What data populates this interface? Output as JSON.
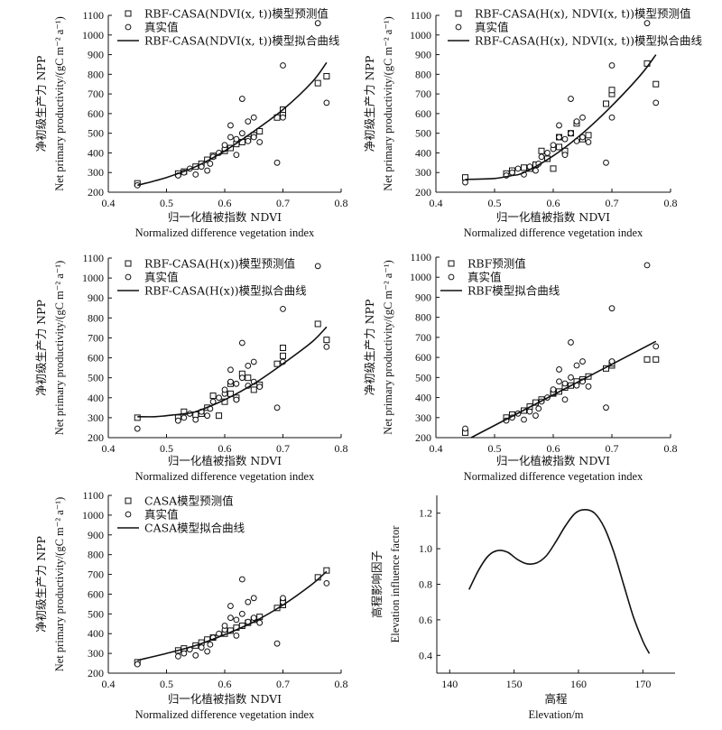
{
  "chart_data": [
    {
      "type": "scatter",
      "xlabel_cn": "归一化植被指数 NDVI",
      "xlabel_en": "Normalized difference vegetation index",
      "ylabel_cn": "净初级生产力 NPP",
      "ylabel_en": "Net primary productivity/(gC m⁻² a⁻¹)",
      "xlim": [
        0.4,
        0.8
      ],
      "ylim": [
        200,
        1100
      ],
      "xticks": [
        "0.4",
        "0.5",
        "0.6",
        "0.7",
        "0.8"
      ],
      "yticks": [
        "200",
        "300",
        "400",
        "500",
        "600",
        "700",
        "800",
        "900",
        "1000",
        "1100"
      ],
      "legend_loc": "top-left",
      "legend": [
        "RBF-CASA(NDVI(x, t))模型预测值",
        "真实值",
        "RBF-CASA(NDVI(x, t))模型拟合曲线"
      ],
      "series": [
        {
          "name": "RBF-CASA(NDVI(x, t))模型预测值",
          "marker": "square",
          "x": [
            0.45,
            0.52,
            0.53,
            0.55,
            0.56,
            0.57,
            0.58,
            0.6,
            0.61,
            0.62,
            0.63,
            0.64,
            0.65,
            0.66,
            0.69,
            0.7,
            0.7,
            0.76,
            0.775
          ],
          "y": [
            245,
            295,
            305,
            330,
            345,
            365,
            385,
            410,
            425,
            445,
            455,
            470,
            490,
            510,
            580,
            600,
            620,
            755,
            790
          ]
        },
        {
          "name": "真实值",
          "marker": "circle",
          "x": [
            0.45,
            0.52,
            0.53,
            0.54,
            0.55,
            0.56,
            0.57,
            0.575,
            0.58,
            0.59,
            0.6,
            0.6,
            0.61,
            0.61,
            0.62,
            0.62,
            0.63,
            0.63,
            0.64,
            0.64,
            0.65,
            0.65,
            0.66,
            0.69,
            0.7,
            0.7,
            0.76,
            0.775
          ],
          "y": [
            235,
            285,
            300,
            320,
            290,
            330,
            310,
            345,
            380,
            400,
            420,
            440,
            480,
            540,
            390,
            470,
            500,
            675,
            460,
            560,
            480,
            580,
            455,
            350,
            845,
            580,
            1060,
            655
          ]
        },
        {
          "name": "RBF-CASA(NDVI(x, t))模型拟合曲线",
          "type": "line",
          "x": [
            0.45,
            0.5,
            0.55,
            0.6,
            0.65,
            0.7,
            0.75,
            0.775
          ],
          "y": [
            235,
            275,
            330,
            410,
            510,
            620,
            760,
            860
          ]
        }
      ]
    },
    {
      "type": "scatter",
      "xlabel_cn": "归一化植被指数 NDVI",
      "xlabel_en": "Normalized difference vegetation index",
      "ylabel_cn": "净初级生产力 NPP",
      "ylabel_en": "Net primary productivity/(gC m⁻² a⁻¹)",
      "xlim": [
        0.4,
        0.8
      ],
      "ylim": [
        200,
        1100
      ],
      "xticks": [
        "0.4",
        "0.5",
        "0.6",
        "0.7",
        "0.8"
      ],
      "yticks": [
        "200",
        "300",
        "400",
        "500",
        "600",
        "700",
        "800",
        "900",
        "1000",
        "1100"
      ],
      "legend_loc": "top-right",
      "legend": [
        "RBF-CASA(H(x), NDVI(x, t))模型预测值",
        "真实值",
        "RBF-CASA(H(x), NDVI(x, t))模型拟合曲线"
      ],
      "series": [
        {
          "name": "RBF-CASA(H(x), NDVI(x, t))模型预测值",
          "marker": "square",
          "x": [
            0.45,
            0.52,
            0.53,
            0.55,
            0.56,
            0.57,
            0.58,
            0.59,
            0.6,
            0.61,
            0.61,
            0.62,
            0.63,
            0.64,
            0.65,
            0.66,
            0.69,
            0.7,
            0.7,
            0.76,
            0.775
          ],
          "y": [
            275,
            295,
            310,
            325,
            320,
            340,
            410,
            370,
            320,
            430,
            480,
            410,
            500,
            550,
            470,
            490,
            650,
            700,
            720,
            855,
            750
          ]
        },
        {
          "name": "真实值",
          "marker": "circle",
          "x": [
            0.45,
            0.52,
            0.53,
            0.54,
            0.55,
            0.56,
            0.57,
            0.575,
            0.58,
            0.59,
            0.6,
            0.6,
            0.61,
            0.61,
            0.62,
            0.62,
            0.63,
            0.63,
            0.64,
            0.64,
            0.65,
            0.65,
            0.66,
            0.69,
            0.7,
            0.7,
            0.76,
            0.775
          ],
          "y": [
            250,
            285,
            300,
            320,
            290,
            330,
            310,
            345,
            380,
            400,
            420,
            440,
            480,
            540,
            390,
            470,
            500,
            675,
            460,
            560,
            480,
            580,
            455,
            350,
            845,
            580,
            1060,
            655
          ]
        },
        {
          "name": "RBF-CASA(H(x), NDVI(x, t))模型拟合曲线",
          "type": "line",
          "x": [
            0.45,
            0.5,
            0.53,
            0.55,
            0.6,
            0.65,
            0.7,
            0.75,
            0.775
          ],
          "y": [
            265,
            270,
            285,
            300,
            385,
            500,
            640,
            800,
            900
          ]
        }
      ]
    },
    {
      "type": "scatter",
      "xlabel_cn": "归一化植被指数 NDVI",
      "xlabel_en": "Normalized difference vegetation index",
      "ylabel_cn": "净初级生产力 NPP",
      "ylabel_en": "Net primary productivity/(gC m⁻² a⁻¹)",
      "xlim": [
        0.4,
        0.8
      ],
      "ylim": [
        200,
        1100
      ],
      "xticks": [
        "0.4",
        "0.5",
        "0.6",
        "0.7",
        "0.8"
      ],
      "yticks": [
        "200",
        "300",
        "400",
        "500",
        "600",
        "700",
        "800",
        "900",
        "1000",
        "1100"
      ],
      "legend_loc": "top-left",
      "legend": [
        "RBF-CASA(H(x))模型预测值",
        "真实值",
        "RBF-CASA(H(x))模型拟合曲线"
      ],
      "series": [
        {
          "name": "RBF-CASA(H(x))模型预测值",
          "marker": "square",
          "x": [
            0.45,
            0.52,
            0.53,
            0.55,
            0.56,
            0.57,
            0.58,
            0.59,
            0.6,
            0.61,
            0.61,
            0.62,
            0.63,
            0.64,
            0.65,
            0.66,
            0.69,
            0.7,
            0.7,
            0.76,
            0.775
          ],
          "y": [
            300,
            300,
            330,
            315,
            320,
            350,
            410,
            310,
            380,
            420,
            470,
            400,
            520,
            500,
            440,
            465,
            570,
            610,
            650,
            770,
            690
          ]
        },
        {
          "name": "真实值",
          "marker": "circle",
          "x": [
            0.45,
            0.52,
            0.53,
            0.54,
            0.55,
            0.56,
            0.57,
            0.575,
            0.58,
            0.59,
            0.6,
            0.6,
            0.61,
            0.61,
            0.62,
            0.62,
            0.63,
            0.63,
            0.64,
            0.64,
            0.65,
            0.65,
            0.66,
            0.69,
            0.7,
            0.7,
            0.76,
            0.775
          ],
          "y": [
            245,
            285,
            300,
            320,
            290,
            330,
            310,
            345,
            380,
            400,
            420,
            440,
            480,
            540,
            390,
            470,
            500,
            675,
            460,
            560,
            480,
            580,
            455,
            350,
            845,
            580,
            1060,
            655
          ]
        },
        {
          "name": "RBF-CASA(H(x))模型拟合曲线",
          "type": "line",
          "x": [
            0.45,
            0.48,
            0.5,
            0.53,
            0.55,
            0.6,
            0.65,
            0.7,
            0.75,
            0.775
          ],
          "y": [
            305,
            305,
            310,
            320,
            330,
            390,
            470,
            570,
            680,
            755
          ]
        }
      ]
    },
    {
      "type": "scatter",
      "xlabel_cn": "归一化植被指数 NDVI",
      "xlabel_en": "Normalized difference vegetation index",
      "ylabel_cn": "净初级生产力 NPP",
      "ylabel_en": "Net primary productivity/(gC m⁻² a⁻¹)",
      "xlim": [
        0.4,
        0.8
      ],
      "ylim": [
        200,
        1100
      ],
      "xticks": [
        "0.4",
        "0.5",
        "0.6",
        "0.7",
        "0.8"
      ],
      "yticks": [
        "200",
        "300",
        "400",
        "500",
        "600",
        "700",
        "800",
        "900",
        "1000",
        "1100"
      ],
      "legend_loc": "top-left",
      "legend": [
        "RBF预测值",
        "真实值",
        "RBF模型拟合曲线"
      ],
      "series": [
        {
          "name": "RBF预测值",
          "marker": "square",
          "x": [
            0.45,
            0.52,
            0.53,
            0.55,
            0.56,
            0.57,
            0.58,
            0.6,
            0.61,
            0.62,
            0.63,
            0.64,
            0.65,
            0.66,
            0.69,
            0.7,
            0.7,
            0.76,
            0.775
          ],
          "y": [
            225,
            300,
            315,
            335,
            355,
            375,
            390,
            420,
            430,
            450,
            460,
            480,
            490,
            505,
            545,
            560,
            570,
            590,
            590
          ]
        },
        {
          "name": "真实值",
          "marker": "circle",
          "x": [
            0.45,
            0.52,
            0.53,
            0.54,
            0.55,
            0.56,
            0.57,
            0.575,
            0.58,
            0.59,
            0.6,
            0.6,
            0.61,
            0.61,
            0.62,
            0.62,
            0.63,
            0.63,
            0.64,
            0.64,
            0.65,
            0.65,
            0.66,
            0.69,
            0.7,
            0.7,
            0.76,
            0.775
          ],
          "y": [
            245,
            285,
            300,
            320,
            290,
            330,
            310,
            345,
            380,
            400,
            420,
            440,
            480,
            540,
            390,
            470,
            500,
            675,
            460,
            560,
            480,
            580,
            455,
            350,
            845,
            580,
            1060,
            655
          ]
        },
        {
          "name": "RBF模型拟合曲线",
          "type": "line",
          "x": [
            0.46,
            0.775
          ],
          "y": [
            200,
            680
          ]
        }
      ]
    },
    {
      "type": "scatter",
      "xlabel_cn": "归一化植被指数 NDVI",
      "xlabel_en": "Normalized difference vegetation index",
      "ylabel_cn": "净初级生产力 NPP",
      "ylabel_en": "Net primary productivity/(gC m⁻² a⁻¹)",
      "xlim": [
        0.4,
        0.8
      ],
      "ylim": [
        200,
        1100
      ],
      "xticks": [
        "0.4",
        "0.5",
        "0.6",
        "0.7",
        "0.8"
      ],
      "yticks": [
        "200",
        "300",
        "400",
        "500",
        "600",
        "700",
        "800",
        "900",
        "1000",
        "1100"
      ],
      "legend_loc": "top-left",
      "legend": [
        "CASA模型预测值",
        "真实值",
        "CASA模型拟合曲线"
      ],
      "series": [
        {
          "name": "CASA模型预测值",
          "marker": "square",
          "x": [
            0.45,
            0.52,
            0.53,
            0.55,
            0.56,
            0.57,
            0.58,
            0.6,
            0.61,
            0.62,
            0.63,
            0.64,
            0.65,
            0.66,
            0.69,
            0.7,
            0.7,
            0.76,
            0.775
          ],
          "y": [
            255,
            315,
            325,
            340,
            355,
            370,
            380,
            400,
            415,
            430,
            440,
            455,
            470,
            485,
            530,
            545,
            560,
            685,
            720
          ]
        },
        {
          "name": "真实值",
          "marker": "circle",
          "x": [
            0.45,
            0.52,
            0.53,
            0.54,
            0.55,
            0.56,
            0.57,
            0.575,
            0.58,
            0.59,
            0.6,
            0.6,
            0.61,
            0.61,
            0.62,
            0.62,
            0.63,
            0.63,
            0.64,
            0.64,
            0.65,
            0.65,
            0.66,
            0.69,
            0.7,
            0.7,
            0.775
          ],
          "y": [
            245,
            285,
            300,
            320,
            290,
            330,
            310,
            345,
            380,
            400,
            420,
            440,
            480,
            540,
            390,
            470,
            500,
            675,
            460,
            560,
            480,
            580,
            455,
            350,
            560,
            580,
            655
          ]
        },
        {
          "name": "CASA模型拟合曲线",
          "type": "line",
          "x": [
            0.45,
            0.5,
            0.55,
            0.6,
            0.65,
            0.7,
            0.75,
            0.775
          ],
          "y": [
            265,
            300,
            340,
            395,
            460,
            545,
            650,
            715
          ]
        }
      ]
    },
    {
      "type": "line",
      "xlabel_cn": "高程",
      "xlabel_en": "Elevation/m",
      "ylabel_cn": "高程影响因子",
      "ylabel_en": "Elevation influence factor",
      "xlim": [
        138,
        175
      ],
      "ylim": [
        0.3,
        1.3
      ],
      "xticks": [
        "140",
        "150",
        "160",
        "170"
      ],
      "yticks": [
        "0.4",
        "0.6",
        "0.8",
        "1.0",
        "1.2"
      ],
      "series": [
        {
          "name": "",
          "type": "line",
          "x": [
            143,
            144.5,
            146,
            147.5,
            149,
            150.5,
            152,
            153.5,
            155,
            156.5,
            158,
            159.5,
            161,
            162.5,
            164,
            165.5,
            167,
            168.5,
            170,
            171
          ],
          "y": [
            0.77,
            0.88,
            0.96,
            0.99,
            0.98,
            0.94,
            0.915,
            0.92,
            0.96,
            1.04,
            1.13,
            1.2,
            1.22,
            1.2,
            1.12,
            0.98,
            0.8,
            0.62,
            0.48,
            0.41
          ]
        }
      ]
    }
  ]
}
